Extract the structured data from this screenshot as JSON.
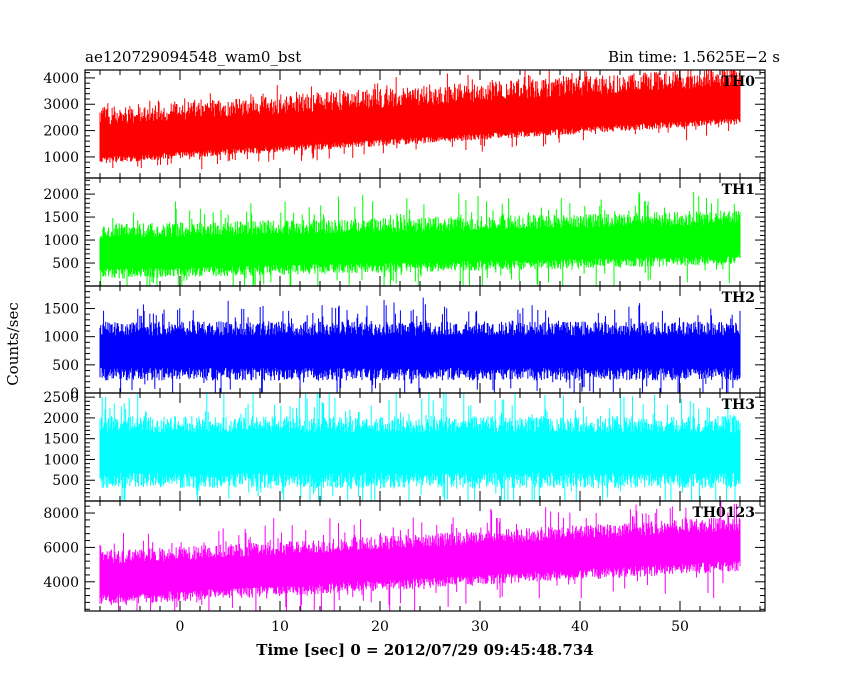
{
  "header": {
    "left_title": "ae120729094548_wam0_bst",
    "right_title": "Bin time: 1.5625E−2 s"
  },
  "axes": {
    "ylabel": "Counts/sec",
    "xlabel": "Time [sec] 0 = 2012/07/29 09:45:48.734",
    "x_ticks": [
      "0",
      "10",
      "20",
      "30",
      "40",
      "50"
    ]
  },
  "chart_data": [
    {
      "type": "line",
      "panel_label": "TH0",
      "color": "#ff0000",
      "x_range": [
        -8,
        56
      ],
      "xlim": [
        -9.5,
        58.5
      ],
      "ylim": [
        200,
        4300
      ],
      "y_ticks": [
        "1000",
        "2000",
        "3000",
        "4000"
      ],
      "trend": {
        "start": 1300,
        "end": 2800
      },
      "band": {
        "low": 550,
        "high": 1650,
        "spike": 500
      }
    },
    {
      "type": "line",
      "panel_label": "TH1",
      "color": "#00ff00",
      "x_range": [
        -8,
        56
      ],
      "xlim": [
        -9.5,
        58.5
      ],
      "ylim": [
        0,
        2350
      ],
      "y_ticks": [
        "500",
        "1000",
        "1500",
        "2000"
      ],
      "trend": {
        "start": 650,
        "end": 950
      },
      "band": {
        "low": 500,
        "high": 700,
        "spike": 550
      }
    },
    {
      "type": "line",
      "panel_label": "TH2",
      "color": "#0000ff",
      "x_range": [
        -8,
        56
      ],
      "xlim": [
        -9.5,
        58.5
      ],
      "ylim": [
        0,
        1900
      ],
      "y_ticks": [
        "0",
        "500",
        "1000",
        "1500"
      ],
      "trend": {
        "start": 720,
        "end": 720
      },
      "band": {
        "low": 500,
        "high": 550,
        "spike": 450
      }
    },
    {
      "type": "line",
      "panel_label": "TH3",
      "color": "#00ffff",
      "x_range": [
        -8,
        56
      ],
      "xlim": [
        -9.5,
        58.5
      ],
      "ylim": [
        0,
        2600
      ],
      "y_ticks": [
        "500",
        "1000",
        "1500",
        "2000",
        "2500"
      ],
      "trend": {
        "start": 1150,
        "end": 1150
      },
      "band": {
        "low": 850,
        "high": 900,
        "spike": 800
      }
    },
    {
      "type": "line",
      "panel_label": "TH0123",
      "color": "#ff00ff",
      "x_range": [
        -8,
        56
      ],
      "xlim": [
        -9.5,
        58.5
      ],
      "ylim": [
        2300,
        8700
      ],
      "y_ticks": [
        "4000",
        "6000",
        "8000"
      ],
      "trend": {
        "start": 4000,
        "end": 6000
      },
      "band": {
        "low": 1400,
        "high": 1800,
        "spike": 1500
      }
    }
  ]
}
